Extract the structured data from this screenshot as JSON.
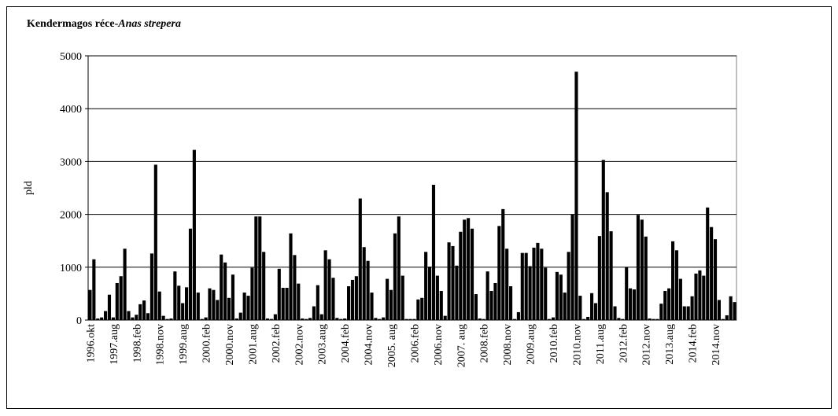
{
  "chart_data": {
    "type": "bar",
    "title": "Kendermagos réce-",
    "title_italic": "Anas strepera",
    "ylabel": "pld",
    "color": "#000000",
    "ylim": [
      0,
      5000
    ],
    "yticks": [
      0,
      1000,
      2000,
      3000,
      4000,
      5000
    ],
    "grid": true,
    "categories": [
      "1996.okt",
      null,
      null,
      null,
      null,
      null,
      "1997.aug",
      null,
      null,
      null,
      null,
      null,
      "1998.feb",
      null,
      null,
      null,
      null,
      null,
      "1998.nov",
      null,
      null,
      null,
      null,
      null,
      "1999.aug",
      null,
      null,
      null,
      null,
      null,
      "2000.feb",
      null,
      null,
      null,
      null,
      null,
      "2000.nov",
      null,
      null,
      null,
      null,
      null,
      "2001.aug",
      null,
      null,
      null,
      null,
      null,
      "2002.feb",
      null,
      null,
      null,
      null,
      null,
      "2002.nov",
      null,
      null,
      null,
      null,
      null,
      "2003.aug",
      null,
      null,
      null,
      null,
      null,
      "2004.feb",
      null,
      null,
      null,
      null,
      null,
      "2004.nov",
      null,
      null,
      null,
      null,
      null,
      "2005. aug",
      null,
      null,
      null,
      null,
      null,
      "2006.feb",
      null,
      null,
      null,
      null,
      null,
      "2006.nov",
      null,
      null,
      null,
      null,
      null,
      "2007. aug",
      null,
      null,
      null,
      null,
      null,
      "2008.feb",
      null,
      null,
      null,
      null,
      null,
      "2008.nov",
      null,
      null,
      null,
      null,
      null,
      "2009.aug",
      null,
      null,
      null,
      null,
      null,
      "2010.feb",
      null,
      null,
      null,
      null,
      null,
      "2010.nov",
      null,
      null,
      null,
      null,
      null,
      "2011.aug",
      null,
      null,
      null,
      null,
      null,
      "2012.feb",
      null,
      null,
      null,
      null,
      null,
      "2012.nov",
      null,
      null,
      null,
      null,
      null,
      "2013.aug",
      null,
      null,
      null,
      null,
      null,
      "2014.feb",
      null,
      null,
      null,
      null,
      null,
      "2014.nov",
      null,
      null,
      null,
      null,
      null
    ],
    "values": [
      570,
      1150,
      30,
      50,
      170,
      480,
      50,
      700,
      830,
      1350,
      170,
      50,
      100,
      300,
      370,
      130,
      1260,
      2940,
      540,
      80,
      20,
      30,
      920,
      650,
      320,
      620,
      1730,
      3220,
      520,
      20,
      50,
      600,
      570,
      380,
      1240,
      1090,
      420,
      860,
      30,
      140,
      520,
      460,
      990,
      1960,
      1960,
      1290,
      30,
      20,
      110,
      970,
      610,
      610,
      1640,
      1230,
      690,
      30,
      20,
      40,
      260,
      660,
      110,
      1320,
      1150,
      800,
      40,
      20,
      30,
      640,
      760,
      830,
      2300,
      1380,
      1120,
      520,
      40,
      20,
      50,
      780,
      570,
      1640,
      1960,
      840,
      20,
      20,
      20,
      390,
      420,
      1290,
      1010,
      2560,
      840,
      550,
      80,
      1470,
      1400,
      1030,
      1670,
      1900,
      1930,
      1730,
      490,
      30,
      20,
      920,
      550,
      700,
      1780,
      2100,
      1350,
      640,
      20,
      150,
      1270,
      1270,
      1020,
      1370,
      1460,
      1350,
      990,
      20,
      50,
      910,
      860,
      520,
      1290,
      2000,
      4700,
      460,
      20,
      60,
      510,
      320,
      1590,
      3030,
      2420,
      1680,
      260,
      40,
      20,
      1000,
      600,
      580,
      1990,
      1900,
      1580,
      30,
      20,
      20,
      310,
      550,
      600,
      1490,
      1320,
      780,
      260,
      260,
      450,
      880,
      940,
      840,
      2130,
      1760,
      1530,
      380,
      20,
      90,
      450,
      340
    ]
  }
}
